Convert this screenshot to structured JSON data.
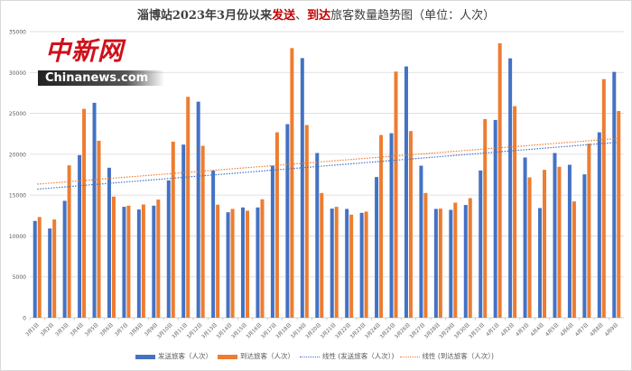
{
  "title": {
    "part1": "淄博站2023年3月份以来",
    "part2": "发送",
    "part3": "、",
    "part4": "到达",
    "part5": "旅客数量趋势图（单位：人次）"
  },
  "watermark": {
    "cn": "中新网",
    "en": "Chinanews.com"
  },
  "colors": {
    "send": "#4472c4",
    "arrive": "#ed7d31",
    "grid": "#d9d9d9",
    "title_accent": "#c00000"
  },
  "chart_data": {
    "type": "bar",
    "title": "淄博站2023年3月份以来发送、到达旅客数量趋势图（单位：人次）",
    "xlabel": "",
    "ylabel": "",
    "ylim": [
      0,
      35000
    ],
    "yticks": [
      "0",
      "5000",
      "10000",
      "15000",
      "20000",
      "25000",
      "30000",
      "35000"
    ],
    "grid": true,
    "legend": "bottom",
    "categories": [
      "3月1日",
      "3月2日",
      "3月3日",
      "3月4日",
      "3月5日",
      "3月6日",
      "3月7日",
      "3月8日",
      "3月9日",
      "3月10日",
      "3月11日",
      "3月12日",
      "3月13日",
      "3月14日",
      "3月15日",
      "3月16日",
      "3月17日",
      "3月18日",
      "3月19日",
      "3月20日",
      "3月21日",
      "3月22日",
      "3月23日",
      "3月24日",
      "3月25日",
      "3月26日",
      "3月27日",
      "3月28日",
      "3月29日",
      "3月30日",
      "3月31日",
      "4月1日",
      "4月2日",
      "4月3日",
      "4月4日",
      "4月5日",
      "4月6日",
      "4月7日",
      "4月8日",
      "4月9日"
    ],
    "series": [
      {
        "name": "发送旅客（人次）",
        "values": [
          11840,
          10920,
          14300,
          19890,
          26290,
          18350,
          13570,
          13240,
          13710,
          16800,
          21180,
          26430,
          18000,
          12900,
          13490,
          13490,
          18600,
          23680,
          31760,
          20150,
          13350,
          13310,
          12830,
          17210,
          22570,
          30740,
          18600,
          13310,
          13200,
          13790,
          18010,
          24190,
          31730,
          19600,
          13420,
          20150,
          18710,
          17540,
          22680,
          30070
        ]
      },
      {
        "name": "到达旅客（人次）",
        "values": [
          12320,
          12020,
          18640,
          25550,
          21650,
          14820,
          13710,
          13860,
          14450,
          21540,
          27020,
          21030,
          13830,
          13310,
          13090,
          14490,
          22680,
          32980,
          23570,
          15260,
          13570,
          12610,
          12980,
          22350,
          30110,
          22830,
          15260,
          13350,
          14080,
          14630,
          24300,
          33570,
          25880,
          17170,
          18090,
          18460,
          14230,
          21290,
          29190,
          25290
        ]
      }
    ],
    "trendlines": [
      {
        "name": "线性 (发送旅客（人次）)",
        "type": "linear",
        "series": 0
      },
      {
        "name": "线性 (到达旅客（人次）)",
        "type": "linear",
        "series": 1
      }
    ]
  }
}
